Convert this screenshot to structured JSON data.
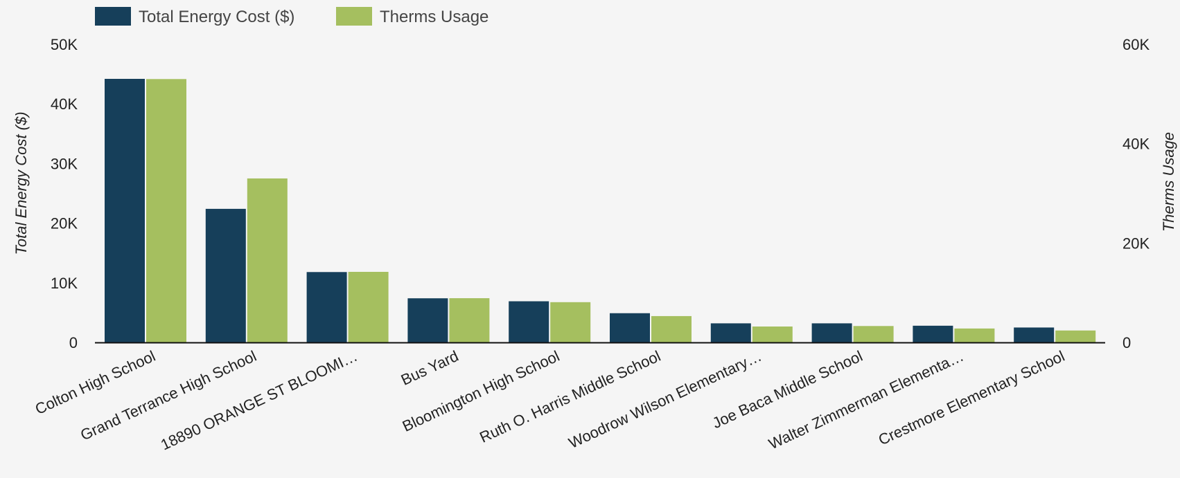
{
  "chart_data": {
    "type": "bar",
    "categories": [
      "Colton High School",
      "Grand Terrance High School",
      "18890 ORANGE ST BLOOMI…",
      "Bus Yard",
      "Bloomington High School",
      "Ruth O. Harris Middle School",
      "Woodrow Wilson Elementary…",
      "Joe Baca Middle School",
      "Walter Zimmerman Elementa…",
      "Crestmore Elementary School"
    ],
    "series": [
      {
        "name": "Total Energy Cost ($)",
        "axis": "left",
        "color": "#163f5a",
        "values": [
          44200,
          22400,
          11800,
          7400,
          6900,
          4900,
          3200,
          3200,
          2800,
          2500
        ]
      },
      {
        "name": "Therms Usage",
        "axis": "right",
        "color": "#a5bf5f",
        "values": [
          53000,
          33000,
          14200,
          8900,
          8100,
          5300,
          3200,
          3300,
          2800,
          2400
        ]
      }
    ],
    "ylabel": "Total Energy Cost ($)",
    "ylabel_right": "Therms Usage",
    "ylim": [
      0,
      50000
    ],
    "ylim_right": [
      0,
      60000
    ],
    "yticks": [
      "0",
      "10K",
      "20K",
      "30K",
      "40K",
      "50K"
    ],
    "yticks_right": [
      "0",
      "20K",
      "40K",
      "60K"
    ],
    "grid": false,
    "legend_position": "top-left"
  }
}
